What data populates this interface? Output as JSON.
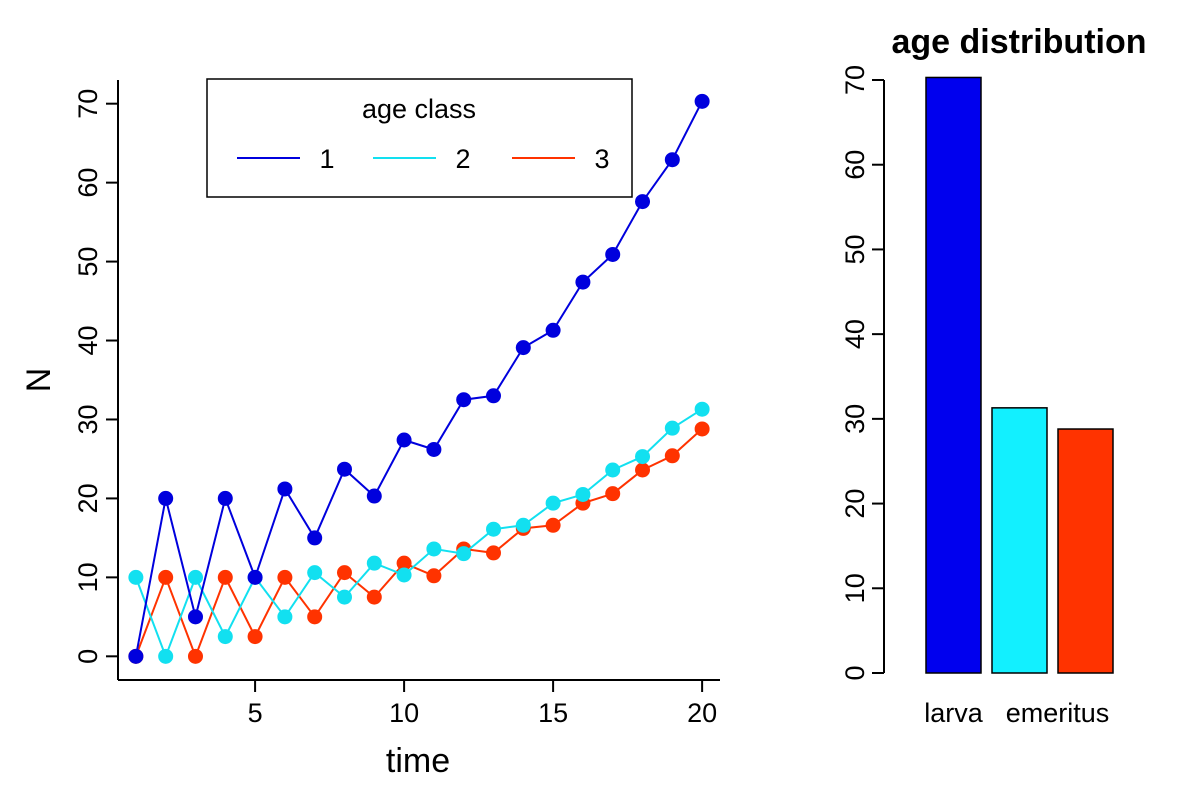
{
  "chart_data": [
    {
      "type": "line",
      "xlabel": "time",
      "ylabel": "N",
      "xlim": [
        0.4,
        20.6
      ],
      "ylim": [
        -3,
        73
      ],
      "x_ticks": [
        5,
        10,
        15,
        20
      ],
      "y_ticks": [
        0,
        10,
        20,
        30,
        40,
        50,
        60,
        70
      ],
      "legend": {
        "title": "age class",
        "position": "top-center"
      },
      "x": [
        1,
        2,
        3,
        4,
        5,
        6,
        7,
        8,
        9,
        10,
        11,
        12,
        13,
        14,
        15,
        16,
        17,
        18,
        19,
        20
      ],
      "series": [
        {
          "name": "1",
          "color": "#0000dd",
          "values": [
            0,
            20,
            5,
            20,
            10,
            21.2,
            15,
            23.7,
            20.3,
            27.4,
            26.2,
            32.5,
            33,
            39.1,
            41.3,
            47.4,
            50.9,
            57.6,
            62.9,
            70.3
          ]
        },
        {
          "name": "2",
          "color": "#12e0f0",
          "values": [
            10,
            0,
            10,
            2.5,
            10,
            5,
            10.6,
            7.5,
            11.8,
            10.3,
            13.6,
            13,
            16.1,
            16.6,
            19.4,
            20.5,
            23.6,
            25.3,
            28.9,
            31.3
          ]
        },
        {
          "name": "3",
          "color": "#ff3300",
          "values": [
            0,
            10,
            0,
            10,
            2.5,
            10,
            5,
            10.6,
            7.5,
            11.8,
            10.2,
            13.6,
            13.1,
            16.2,
            16.6,
            19.4,
            20.6,
            23.6,
            25.4,
            28.8
          ]
        }
      ]
    },
    {
      "type": "bar",
      "title": "age distribution",
      "ylim": [
        0,
        70
      ],
      "y_ticks": [
        0,
        10,
        20,
        30,
        40,
        50,
        60,
        70
      ],
      "categories": [
        "larva",
        "",
        "emeritus"
      ],
      "values": [
        70.3,
        31.3,
        28.8
      ],
      "colors": [
        "#0000ee",
        "#12f0ff",
        "#ff3300"
      ]
    }
  ]
}
